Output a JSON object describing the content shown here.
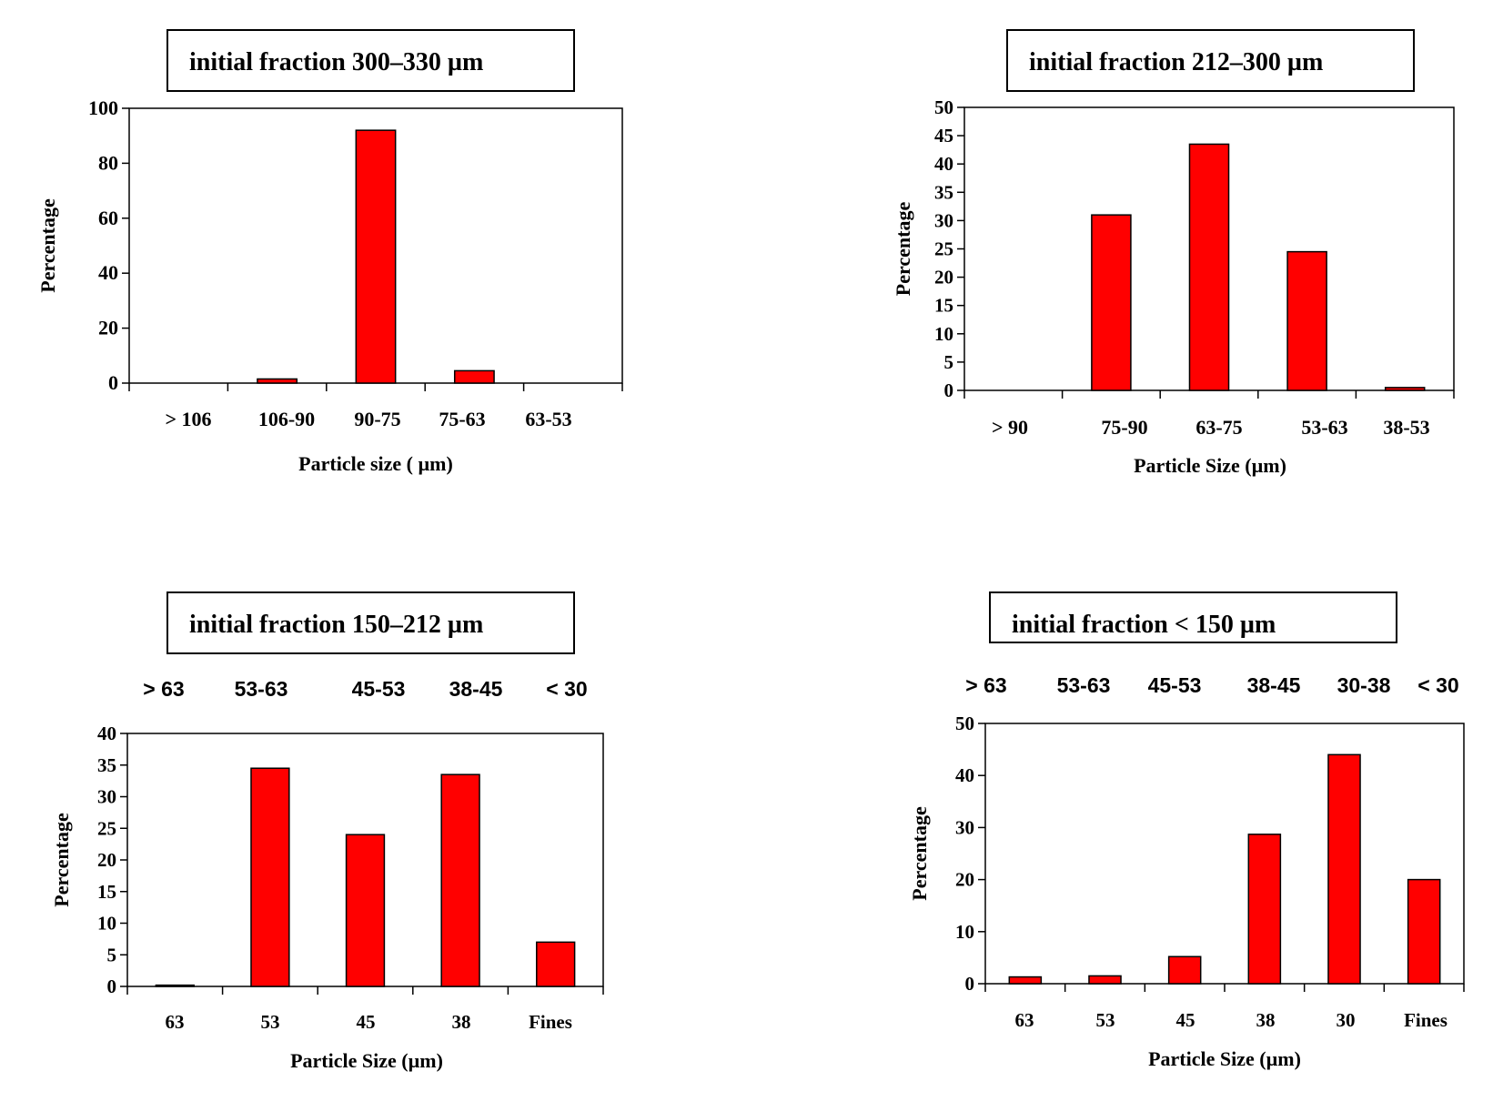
{
  "chart_data": [
    {
      "type": "bar",
      "title": "initial fraction 300–330 µm",
      "xlabel": "Particle size ( µm)",
      "ylabel": "Percentage",
      "categories": [
        "> 106",
        "106-90",
        "90-75",
        "75-63",
        "63-53"
      ],
      "values": [
        0,
        1.5,
        92,
        4.5,
        0
      ],
      "ylim": [
        0,
        100
      ],
      "yticks": [
        0,
        20,
        40,
        60,
        80,
        100
      ],
      "top_labels": [],
      "color": "#ff0000"
    },
    {
      "type": "bar",
      "title": "initial fraction 212–300 µm",
      "xlabel": "Particle Size (µm)",
      "ylabel": "Percentage",
      "categories": [
        "> 90",
        "75-90",
        "63-75",
        "53-63",
        "38-53"
      ],
      "values": [
        0,
        31,
        43.5,
        24.5,
        0.5
      ],
      "ylim": [
        0,
        50
      ],
      "yticks": [
        0,
        5,
        10,
        15,
        20,
        25,
        30,
        35,
        40,
        45,
        50
      ],
      "top_labels": [],
      "color": "#ff0000"
    },
    {
      "type": "bar",
      "title": "initial fraction 150–212 µm",
      "xlabel": "Particle Size (µm)",
      "ylabel": "Percentage",
      "categories": [
        "63",
        "53",
        "45",
        "38",
        "Fines"
      ],
      "values": [
        0.2,
        34.5,
        24,
        33.5,
        7
      ],
      "ylim": [
        0,
        40
      ],
      "yticks": [
        0,
        5,
        10,
        15,
        20,
        25,
        30,
        35,
        40
      ],
      "top_labels": [
        "> 63",
        "53-63",
        "45-53",
        "38-45",
        "< 30"
      ],
      "color": "#ff0000"
    },
    {
      "type": "bar",
      "title": "initial fraction < 150 µm",
      "xlabel": "Particle Size (µm)",
      "ylabel": "Percentage",
      "categories": [
        "63",
        "53",
        "45",
        "38",
        "30",
        "Fines"
      ],
      "values": [
        1.3,
        1.5,
        5.2,
        28.7,
        44,
        20
      ],
      "ylim": [
        0,
        50
      ],
      "yticks": [
        0,
        10,
        20,
        30,
        40,
        50
      ],
      "top_labels": [
        "> 63",
        "53-63",
        "45-53",
        "38-45",
        "30-38",
        "< 30"
      ],
      "color": "#ff0000"
    }
  ]
}
